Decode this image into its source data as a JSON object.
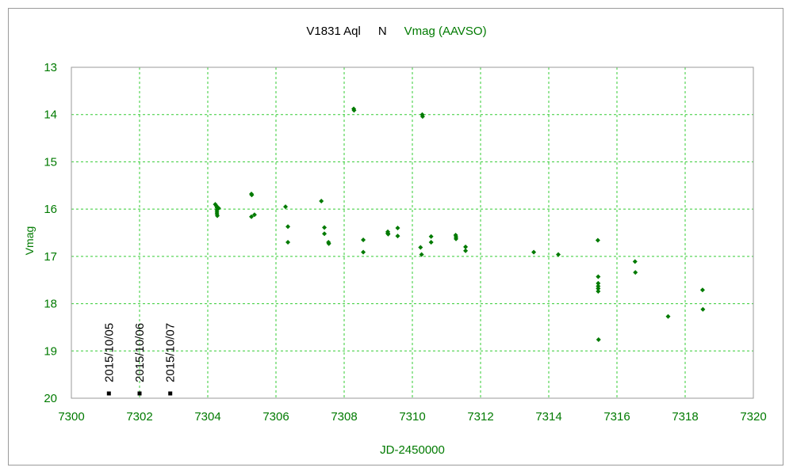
{
  "chart_data": {
    "type": "scatter",
    "title_parts": [
      {
        "text": "V1831 Aql",
        "color": "#000000"
      },
      {
        "text": "N",
        "color": "#000000"
      },
      {
        "text": "Vmag (AAVSO)",
        "color": "#007a00"
      }
    ],
    "xlabel": "JD-2450000",
    "ylabel": "Vmag",
    "xlim": [
      7300,
      7320
    ],
    "ylim": [
      13,
      20
    ],
    "y_inverted": true,
    "x_ticks": [
      7300,
      7302,
      7304,
      7306,
      7308,
      7310,
      7312,
      7314,
      7316,
      7318,
      7320
    ],
    "y_ticks": [
      13,
      14,
      15,
      16,
      17,
      18,
      19,
      20
    ],
    "grid": true,
    "colors": {
      "points": "#007a00",
      "grid": "#33cc33",
      "axis_text": "#007a00",
      "date_marks": "#000000"
    },
    "date_marks": [
      {
        "label": "2015/10/05",
        "x": 7301.1
      },
      {
        "label": "2015/10/06",
        "x": 7302.0
      },
      {
        "label": "2015/10/07",
        "x": 7302.9
      }
    ],
    "series": [
      {
        "values": [
          [
            7304.22,
            15.9
          ],
          [
            7304.25,
            15.93
          ],
          [
            7304.27,
            15.97
          ],
          [
            7304.27,
            16.02
          ],
          [
            7304.27,
            16.06
          ],
          [
            7304.27,
            16.1
          ],
          [
            7304.28,
            16.14
          ],
          [
            7304.32,
            15.98
          ],
          [
            7305.28,
            15.68
          ],
          [
            7305.29,
            15.7
          ],
          [
            7305.28,
            16.16
          ],
          [
            7305.37,
            16.12
          ],
          [
            7306.28,
            15.95
          ],
          [
            7306.35,
            16.37
          ],
          [
            7306.35,
            16.7
          ],
          [
            7307.33,
            15.83
          ],
          [
            7307.42,
            16.39
          ],
          [
            7307.42,
            16.52
          ],
          [
            7307.54,
            16.7
          ],
          [
            7307.55,
            16.73
          ],
          [
            7308.28,
            13.88
          ],
          [
            7308.29,
            13.91
          ],
          [
            7308.56,
            16.65
          ],
          [
            7308.56,
            16.91
          ],
          [
            7309.28,
            16.48
          ],
          [
            7309.28,
            16.51
          ],
          [
            7309.29,
            16.53
          ],
          [
            7309.57,
            16.4
          ],
          [
            7309.57,
            16.57
          ],
          [
            7310.24,
            16.81
          ],
          [
            7310.27,
            16.96
          ],
          [
            7310.29,
            14.0
          ],
          [
            7310.3,
            14.04
          ],
          [
            7310.55,
            16.58
          ],
          [
            7310.55,
            16.7
          ],
          [
            7311.27,
            16.55
          ],
          [
            7311.28,
            16.59
          ],
          [
            7311.28,
            16.63
          ],
          [
            7311.56,
            16.8
          ],
          [
            7311.56,
            16.88
          ],
          [
            7313.56,
            16.91
          ],
          [
            7314.28,
            16.96
          ],
          [
            7315.44,
            16.66
          ],
          [
            7315.45,
            17.43
          ],
          [
            7315.45,
            17.57
          ],
          [
            7315.45,
            17.63
          ],
          [
            7315.45,
            17.68
          ],
          [
            7315.45,
            17.74
          ],
          [
            7315.46,
            18.76
          ],
          [
            7316.53,
            17.11
          ],
          [
            7316.54,
            17.34
          ],
          [
            7317.5,
            18.27
          ],
          [
            7318.51,
            17.71
          ],
          [
            7318.52,
            18.12
          ]
        ]
      }
    ]
  }
}
